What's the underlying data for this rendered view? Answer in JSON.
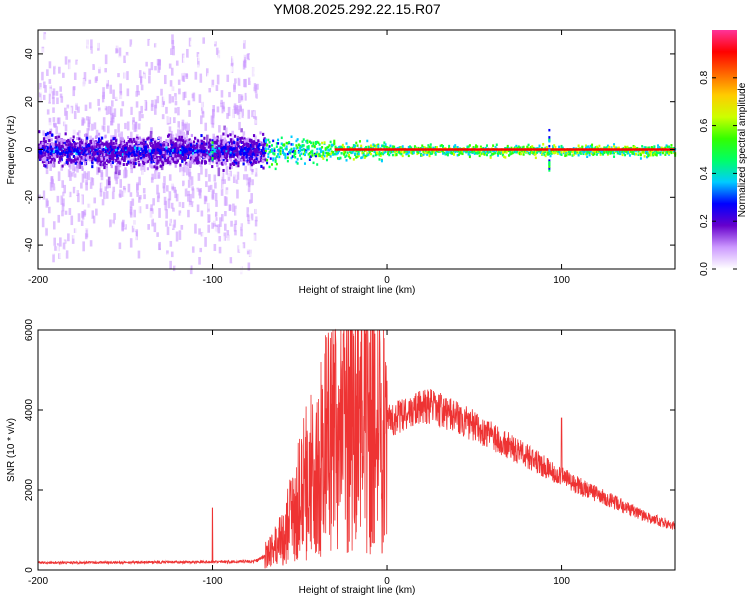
{
  "figure": {
    "title": "YM08.2025.292.22.15.R07"
  },
  "chart_data": [
    {
      "type": "heatmap",
      "title": "YM08.2025.292.22.15.R07",
      "xlabel": "Height of straight line (km)",
      "ylabel": "Frequency (Hz)",
      "xlim": [
        -200,
        165
      ],
      "ylim": [
        -50,
        50
      ],
      "x_ticks": [
        -200,
        -100,
        0,
        100
      ],
      "y_ticks": [
        -40,
        -20,
        0,
        20,
        40
      ],
      "colorbar": {
        "label": "Normalized spectral amplitude",
        "range": [
          0,
          1
        ],
        "ticks": [
          0.0,
          0.2,
          0.4,
          0.6,
          0.8
        ],
        "tick_labels": [
          "0.0",
          "0.2",
          "0.4",
          "0.6",
          "0.8"
        ],
        "colors": [
          "#ffffff",
          "#cc99ff",
          "#6600cc",
          "#0000ff",
          "#00ccff",
          "#00ff66",
          "#33ff00",
          "#ccff00",
          "#ffcc00",
          "#ff6600",
          "#ff0000",
          "#ff3399"
        ]
      },
      "description": "Diffuse purple scatter across -50 to 50 Hz for heights -200 to -75 km; energy concentrates near 0 Hz with green/yellow/red core from about -70 km to 165 km; red line at 0 Hz from about -30 km onward; small spikes near -100 km and 93 km."
    },
    {
      "type": "line",
      "xlabel": "Height of straight line (km)",
      "ylabel": "SNR (10 * v/v)",
      "xlim": [
        -200,
        165
      ],
      "ylim": [
        0,
        6000
      ],
      "x_ticks": [
        -200,
        -100,
        0,
        100
      ],
      "y_ticks": [
        0,
        2000,
        4000,
        6000
      ],
      "color": "#ee3333",
      "series": [
        {
          "name": "",
          "x": [
            -200,
            -150,
            -100,
            -75,
            -65,
            -55,
            -45,
            -35,
            -25,
            -15,
            -5,
            5,
            15,
            25,
            35,
            50,
            70,
            90,
            110,
            130,
            150,
            165
          ],
          "y": [
            180,
            190,
            200,
            220,
            500,
            1300,
            2300,
            3300,
            3700,
            3800,
            3600,
            3800,
            4000,
            4100,
            3900,
            3600,
            3100,
            2600,
            2100,
            1700,
            1300,
            1100
          ]
        }
      ],
      "annotations": [
        {
          "x": -100,
          "peak": 1550,
          "note": "spike"
        },
        {
          "x": -25,
          "peak": 5900,
          "note": "spike"
        },
        {
          "x": -12,
          "peak": 5900,
          "note": "spike"
        },
        {
          "x": -7,
          "peak": 5900,
          "note": "spike"
        },
        {
          "x": 100,
          "peak": 3800,
          "note": "spike"
        }
      ]
    }
  ]
}
